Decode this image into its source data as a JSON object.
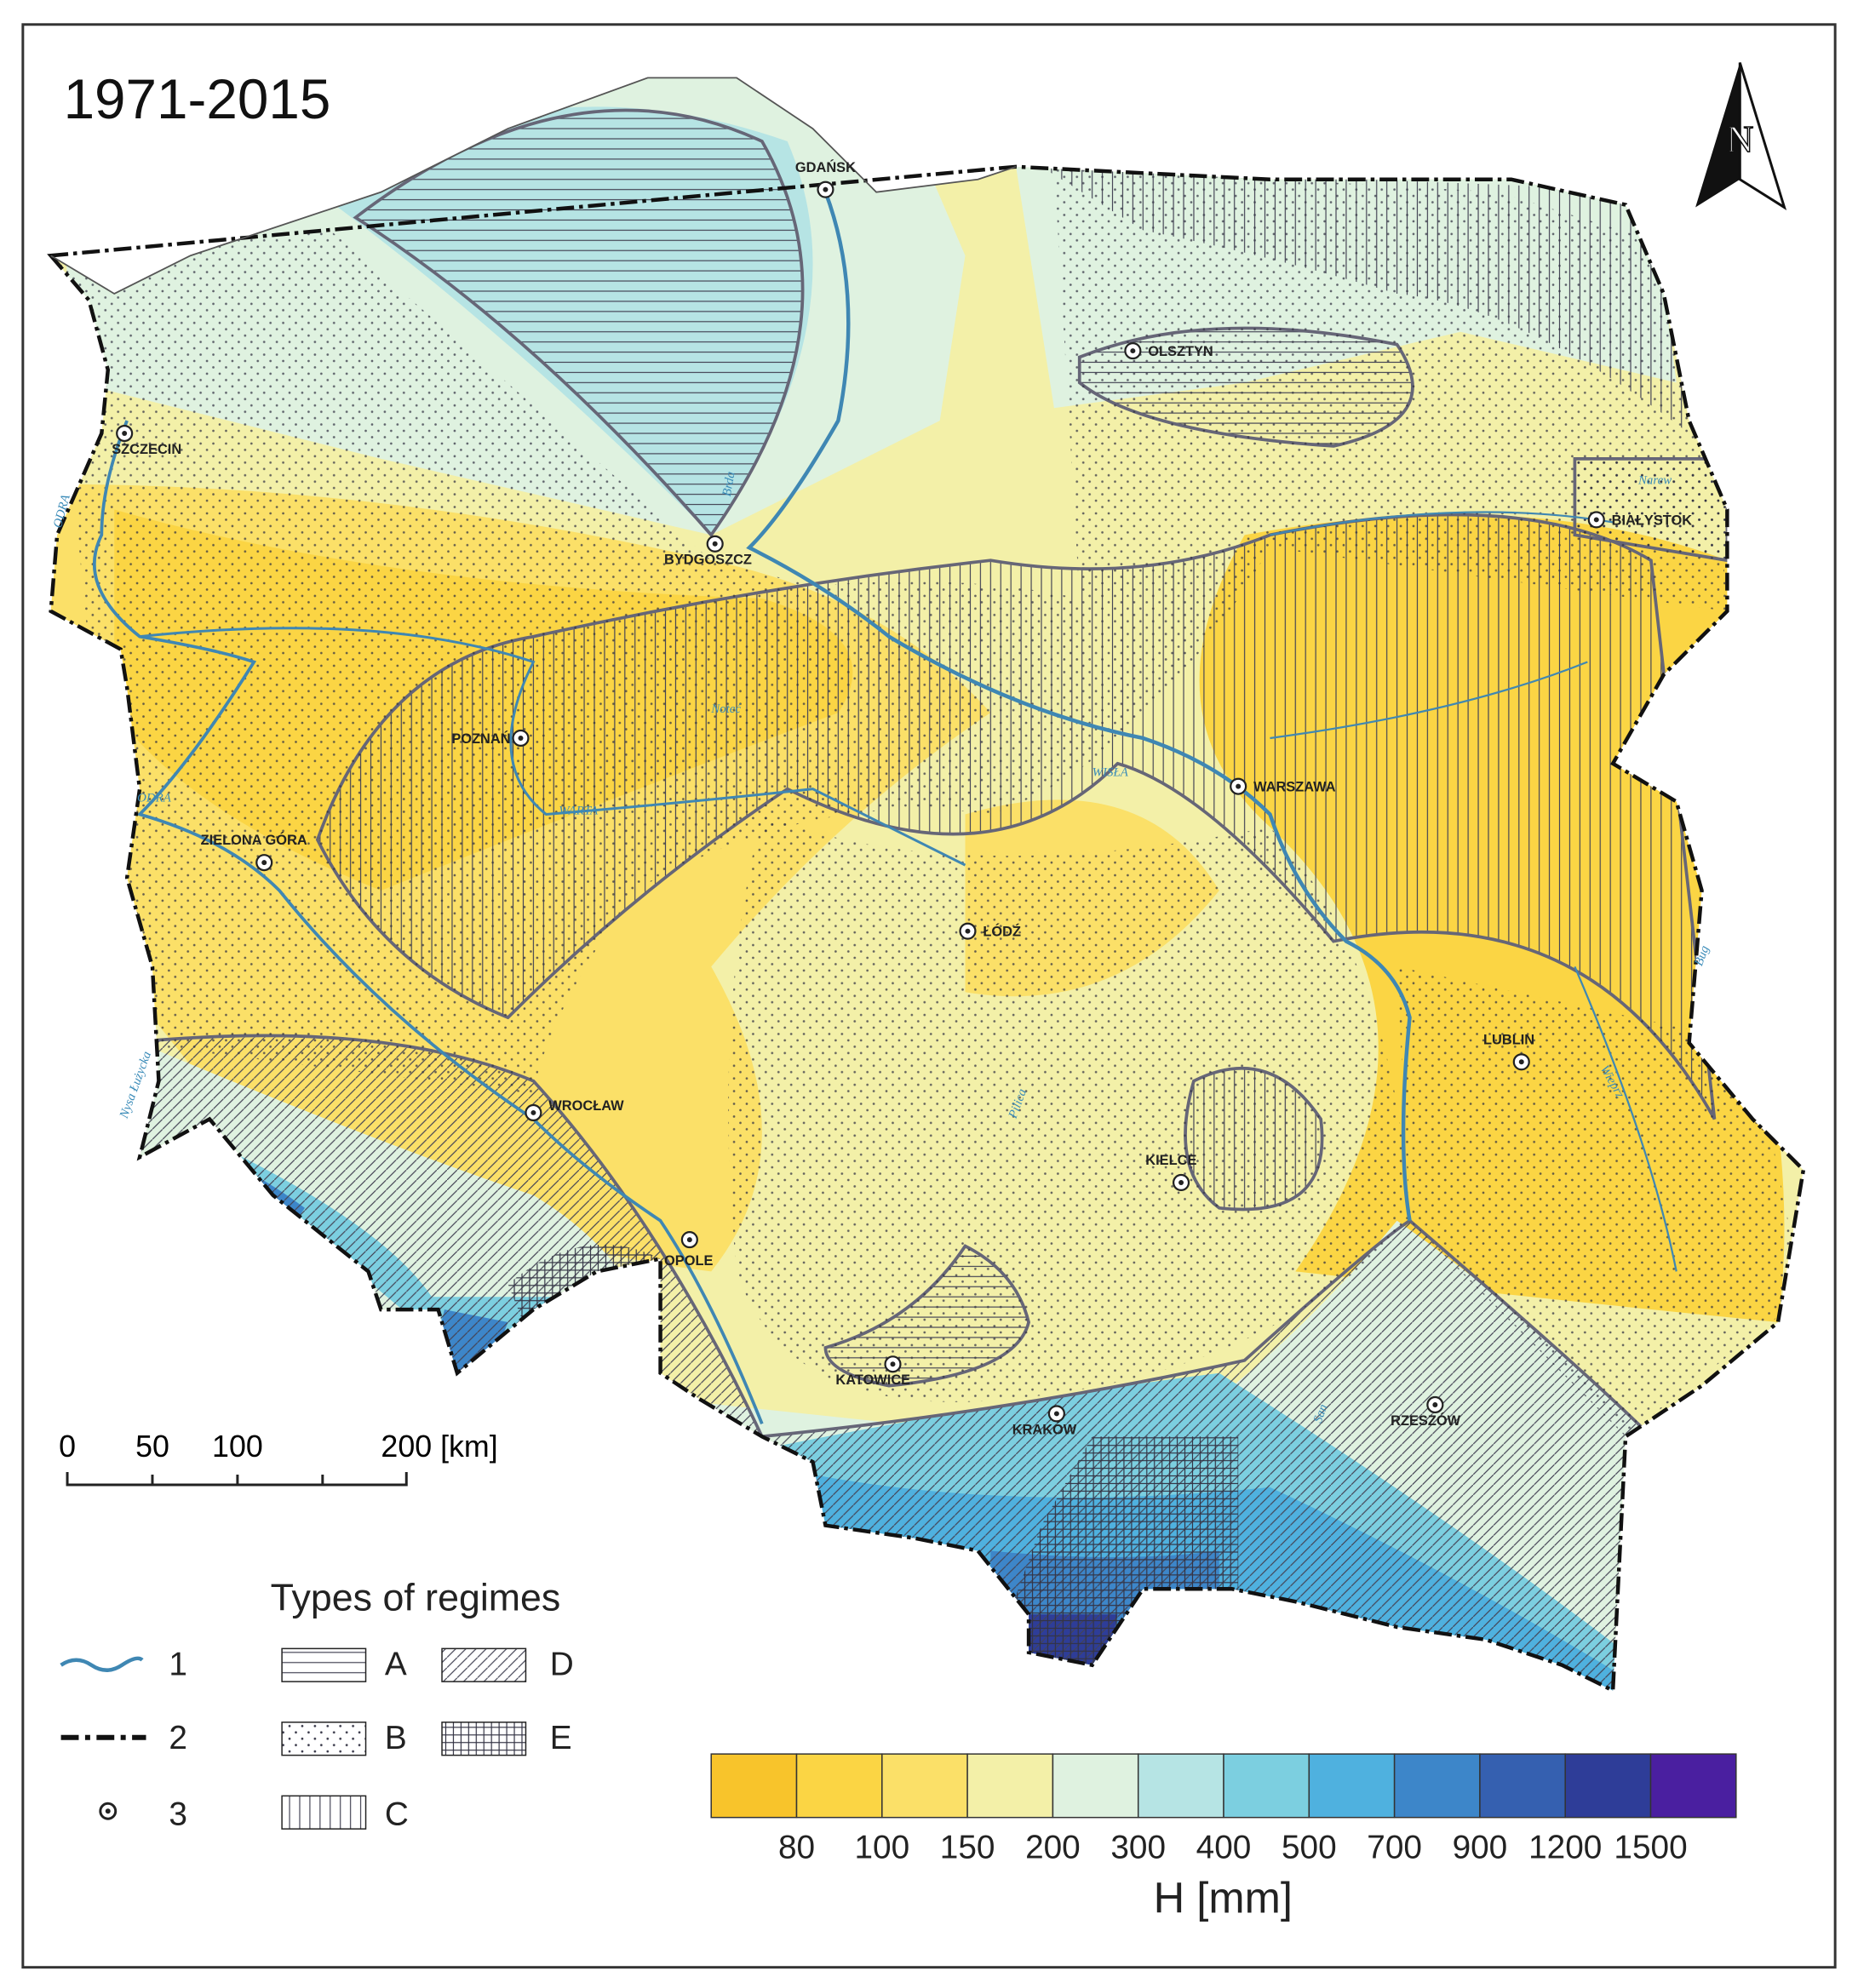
{
  "title": "1971-2015",
  "north_arrow": "N",
  "cities": [
    "GDAŃSK",
    "OLSZTYN",
    "SZCZECIN",
    "BIAŁYSTOK",
    "BYDGOSZCZ",
    "POZNAŃ",
    "WARSZAWA",
    "ZIELONA GÓRA",
    "ŁÓDŹ",
    "LUBLIN",
    "WROCŁAW",
    "KIELCE",
    "OPOLE",
    "KATOWICE",
    "KRAKÓW",
    "RZESZÓW"
  ],
  "rivers": [
    "ODRA",
    "WISŁA",
    "WARTA",
    "ODRA",
    "Noteć",
    "Bug",
    "Narew",
    "Pilica",
    "San",
    "Brda",
    "Wieprz",
    "Nysa Łużycka"
  ],
  "scale_bar": {
    "ticks": [
      "0",
      "50",
      "100",
      "200 [km]"
    ]
  },
  "legend": {
    "title": "Types of regimes",
    "symbols": [
      "1",
      "2",
      "3"
    ],
    "regimes": [
      "A",
      "B",
      "C",
      "D",
      "E"
    ]
  },
  "colorbar": {
    "colors": [
      "#f8c42b",
      "#fbd544",
      "#fbe068",
      "#f3f0a8",
      "#dff2e0",
      "#b6e4e4",
      "#7ccfe0",
      "#4fb1df",
      "#3d86c9",
      "#3560b0",
      "#2e3d98",
      "#4a1fa0"
    ],
    "ticks": [
      80,
      100,
      150,
      200,
      300,
      400,
      500,
      700,
      900,
      1200,
      1500
    ],
    "label": "H [mm]"
  }
}
